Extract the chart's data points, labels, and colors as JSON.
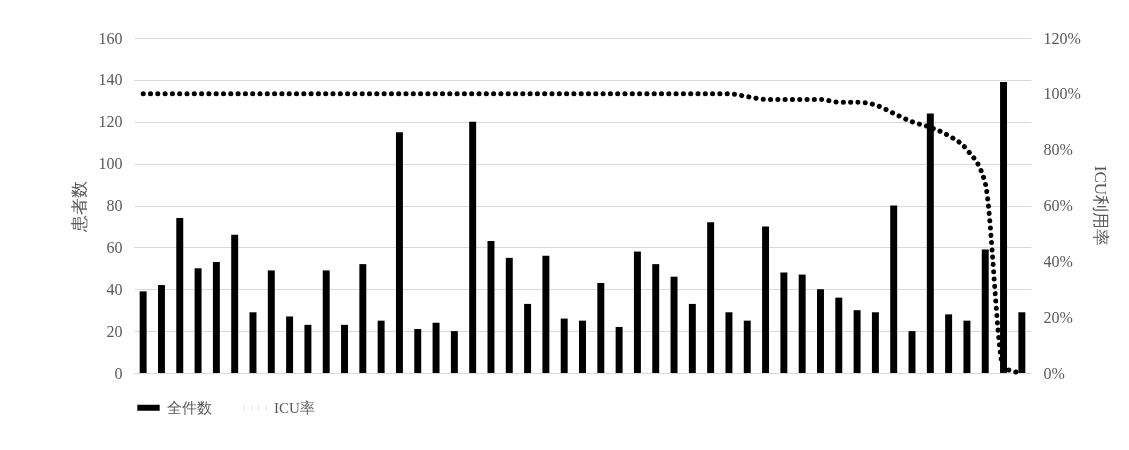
{
  "chart_data": {
    "type": "bar",
    "xlabel": null,
    "ylabel": "患者数",
    "y2label": "ICU利用率",
    "categories": [
      null,
      null,
      null,
      null,
      null,
      null,
      null,
      null,
      null,
      null,
      null,
      null,
      null,
      null,
      null,
      null,
      null,
      null,
      null,
      null,
      null,
      null,
      null,
      null,
      null,
      null,
      null,
      null,
      null,
      null,
      null,
      null,
      null,
      null,
      null,
      null,
      null,
      null,
      null,
      null,
      null,
      null,
      null,
      null,
      null,
      null,
      null,
      null,
      null
    ],
    "series": [
      {
        "name": "全件数",
        "color": "#000000",
        "values": [
          39,
          42,
          74,
          50,
          53,
          66,
          29,
          49,
          27,
          23,
          49,
          23,
          52,
          25,
          115,
          21,
          24,
          20,
          120,
          63,
          55,
          33,
          56,
          26,
          25,
          43,
          22,
          58,
          52,
          46,
          33,
          72,
          29,
          25,
          70,
          48,
          47,
          40,
          36,
          30,
          29,
          80,
          20,
          124,
          28,
          25,
          59,
          139,
          29
        ]
      },
      {
        "name": "ICU率",
        "type": "line",
        "axis": "y2",
        "color": "#000000",
        "line_style": "dotted",
        "marker": "none",
        "values": [
          100,
          100,
          100,
          100,
          100,
          100,
          100,
          100,
          100,
          100,
          100,
          100,
          100,
          100,
          100,
          100,
          100,
          100,
          100,
          100,
          100,
          100,
          100,
          100,
          100,
          100,
          100,
          100,
          100,
          100,
          100,
          100,
          100,
          99,
          98,
          98,
          98,
          98,
          97,
          97,
          96,
          93,
          90,
          88,
          85,
          80,
          68,
          2,
          0
        ]
      }
    ],
    "ylim": [
      0,
      160
    ],
    "yticks": [
      0,
      20,
      40,
      60,
      80,
      100,
      120,
      140,
      160
    ],
    "y2lim": [
      0,
      120
    ],
    "y2ticks": [
      {
        "value": 0,
        "label": "0%"
      },
      {
        "value": 20,
        "label": "20%"
      },
      {
        "value": 40,
        "label": "40%"
      },
      {
        "value": 60,
        "label": "60%"
      },
      {
        "value": 80,
        "label": "80%"
      },
      {
        "value": 100,
        "label": "100%"
      },
      {
        "value": 120,
        "label": "120%"
      }
    ],
    "grid": "y",
    "legend": "bottom"
  }
}
